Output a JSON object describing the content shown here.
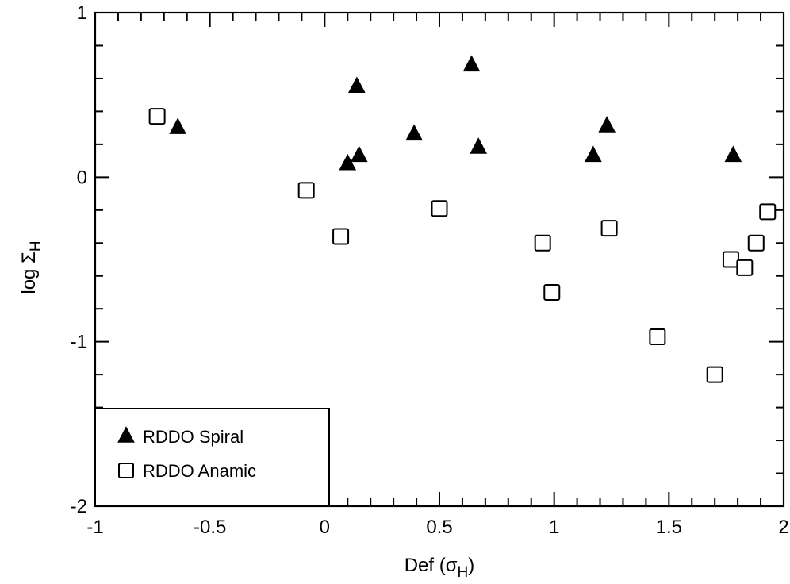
{
  "chart_data": {
    "type": "scatter",
    "xlabel": "Def (σ_H)",
    "ylabel": "log Σ_H",
    "xlim": [
      -1,
      2
    ],
    "ylim": [
      -2,
      1
    ],
    "x_ticks": [
      -1,
      -0.5,
      0,
      0.5,
      1,
      1.5,
      2
    ],
    "x_tick_labels": [
      "-1",
      "-0.5",
      "0",
      "0.5",
      "1",
      "1.5",
      "2"
    ],
    "y_ticks": [
      -2,
      -1,
      0,
      1
    ],
    "y_tick_labels": [
      "-2",
      "-1",
      "0",
      "1"
    ],
    "grid": false,
    "legend_position": "bottom-left",
    "series": [
      {
        "name": "RDDO Spiral",
        "marker": "filled-triangle",
        "color": "#000000",
        "points": [
          {
            "x": -0.64,
            "y": 0.3
          },
          {
            "x": 0.1,
            "y": 0.08
          },
          {
            "x": 0.14,
            "y": 0.55
          },
          {
            "x": 0.15,
            "y": 0.13
          },
          {
            "x": 0.39,
            "y": 0.26
          },
          {
            "x": 0.64,
            "y": 0.68
          },
          {
            "x": 0.67,
            "y": 0.18
          },
          {
            "x": 1.17,
            "y": 0.13
          },
          {
            "x": 1.23,
            "y": 0.31
          },
          {
            "x": 1.78,
            "y": 0.13
          }
        ]
      },
      {
        "name": "RDDO Anamic",
        "marker": "open-square",
        "color": "#000000",
        "points": [
          {
            "x": -0.73,
            "y": 0.37
          },
          {
            "x": -0.08,
            "y": -0.08
          },
          {
            "x": 0.07,
            "y": -0.36
          },
          {
            "x": 0.5,
            "y": -0.19
          },
          {
            "x": 0.95,
            "y": -0.4
          },
          {
            "x": 0.99,
            "y": -0.7
          },
          {
            "x": 1.24,
            "y": -0.31
          },
          {
            "x": 1.45,
            "y": -0.97
          },
          {
            "x": 1.7,
            "y": -1.2
          },
          {
            "x": 1.77,
            "y": -0.5
          },
          {
            "x": 1.83,
            "y": -0.55
          },
          {
            "x": 1.88,
            "y": -0.4
          },
          {
            "x": 1.93,
            "y": -0.21
          }
        ]
      }
    ]
  }
}
